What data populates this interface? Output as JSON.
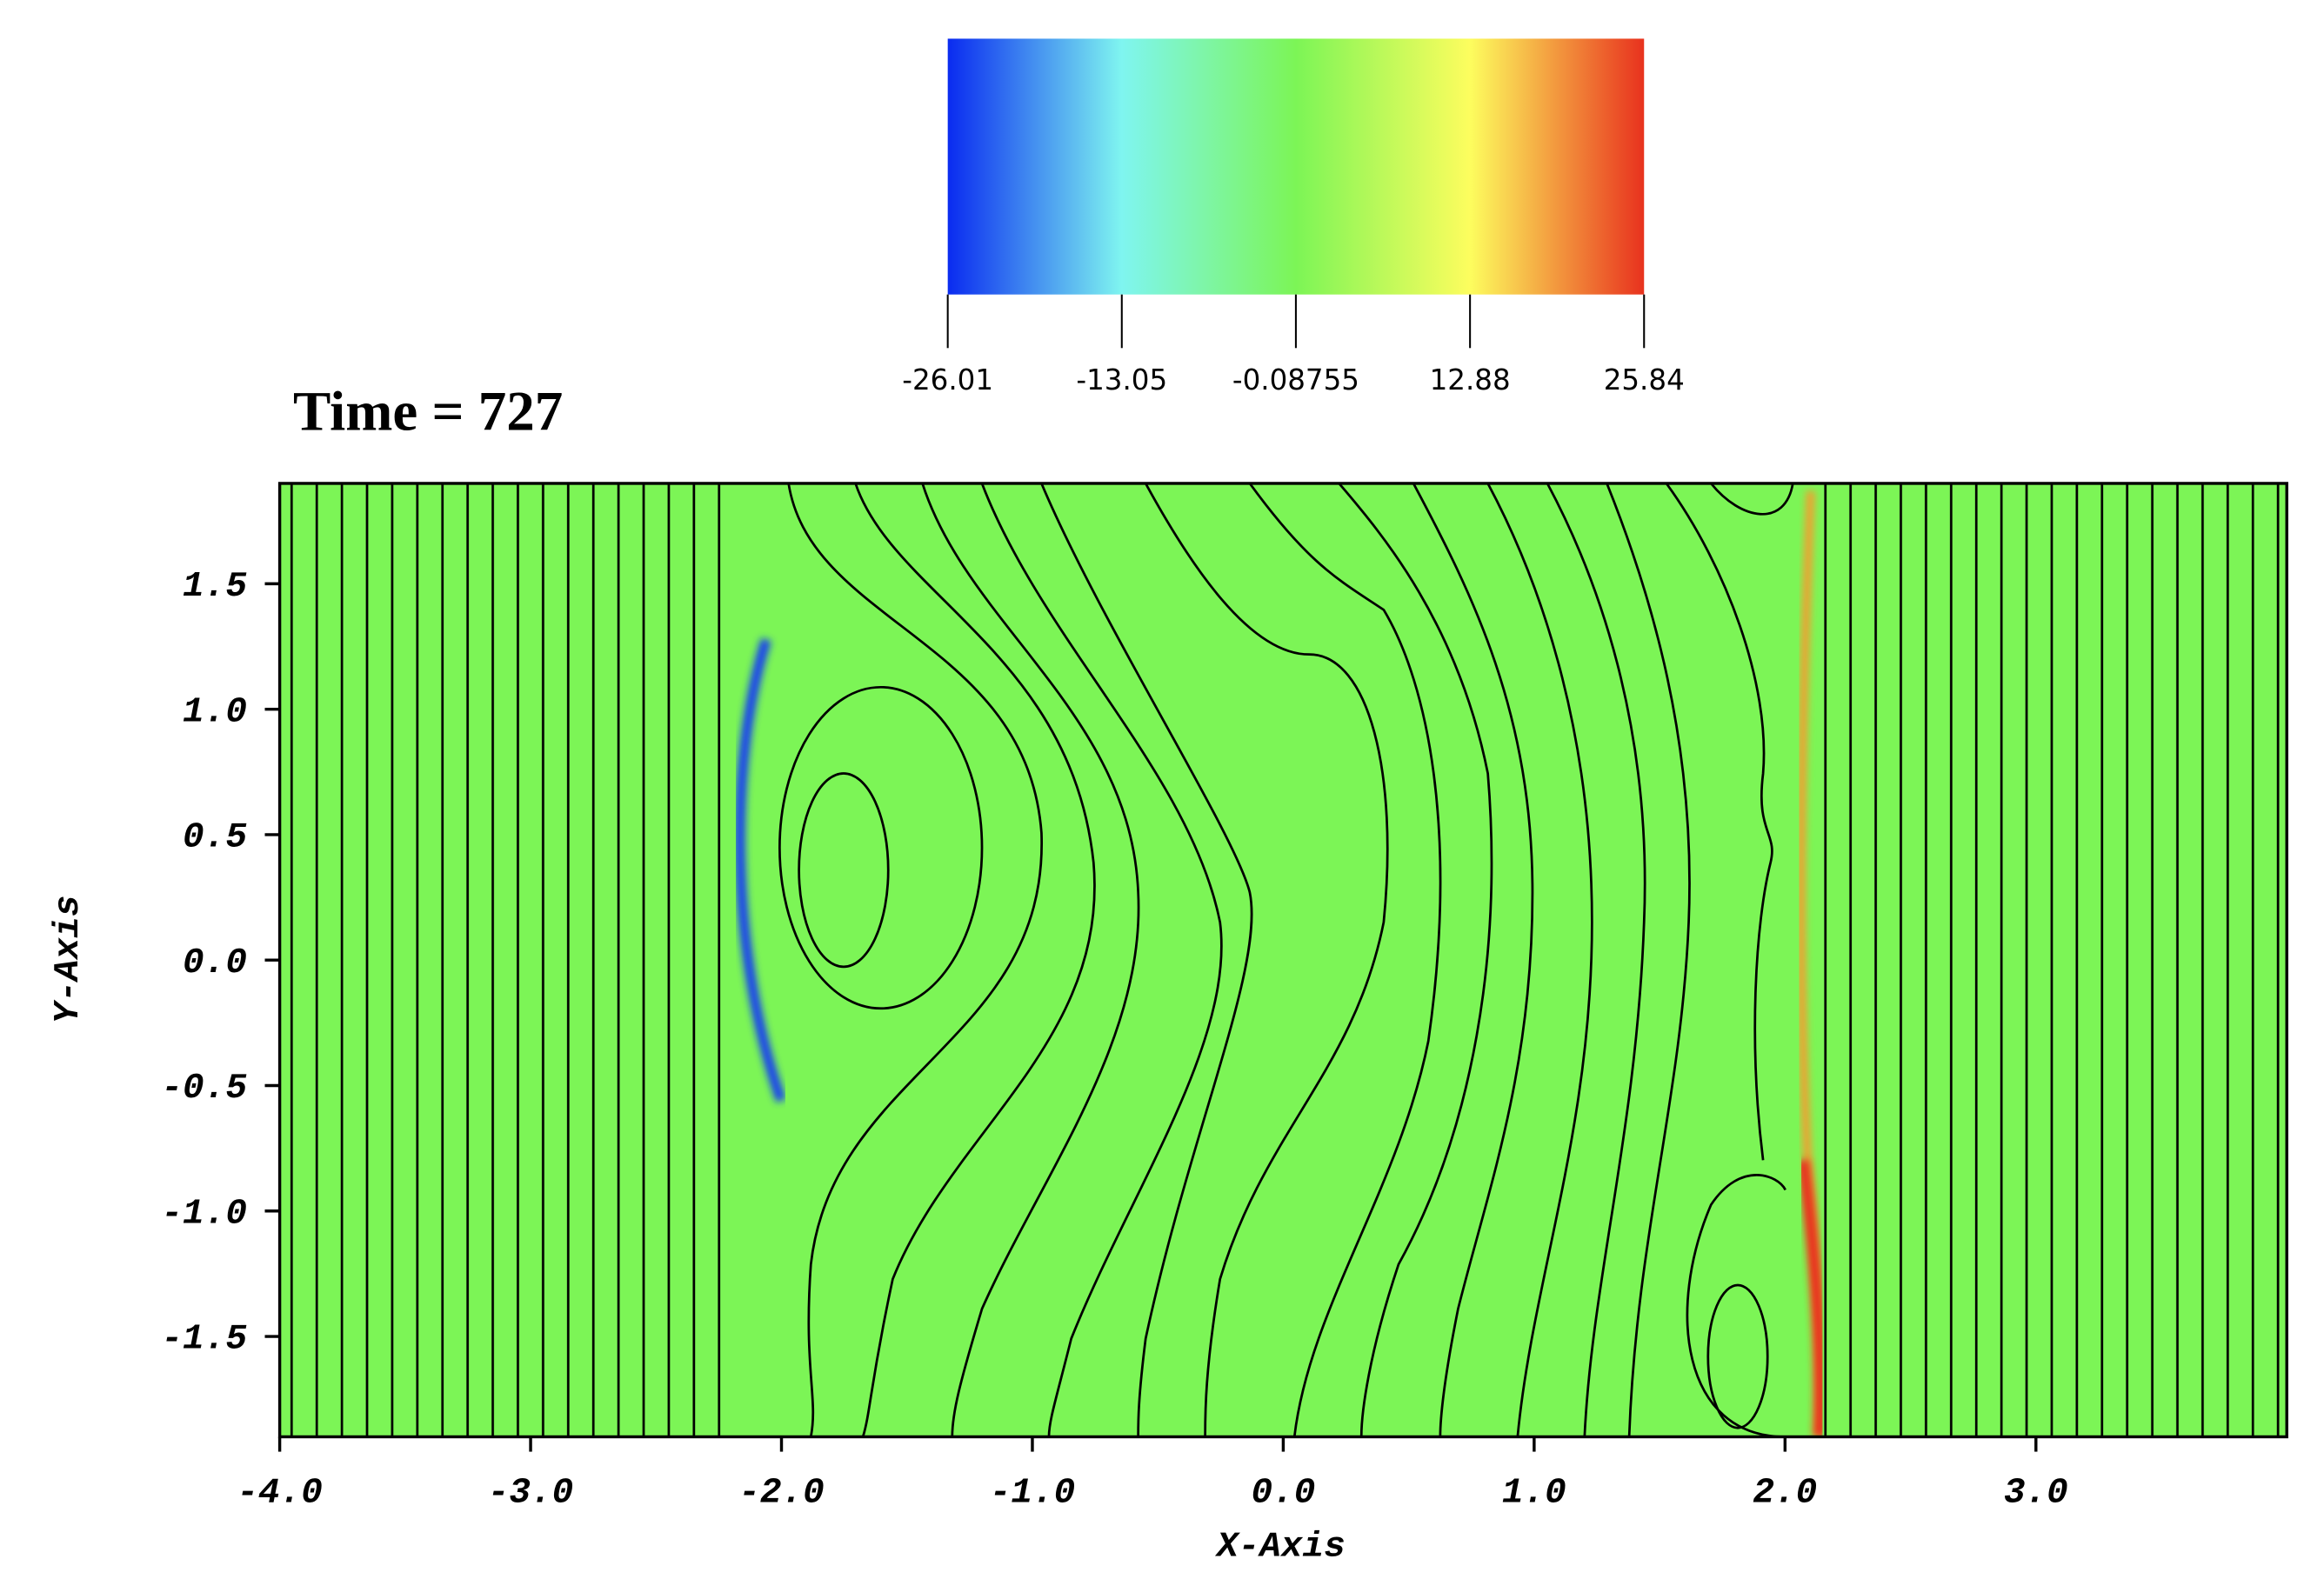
{
  "chart_data": {
    "type": "contour",
    "title": "Time = 727",
    "x_label": "X-Axis",
    "y_label": "Y-Axis",
    "xlim": [
      -4.0,
      4.0
    ],
    "ylim": [
      -1.9,
      1.9
    ],
    "xticks": [
      {
        "value": -4,
        "label": "-4.0"
      },
      {
        "value": -3,
        "label": "-3.0"
      },
      {
        "value": -2,
        "label": "-2.0"
      },
      {
        "value": -1,
        "label": "-1.0"
      },
      {
        "value": 0,
        "label": "0.0"
      },
      {
        "value": 1,
        "label": "1.0"
      },
      {
        "value": 2,
        "label": "2.0"
      },
      {
        "value": 3,
        "label": "3.0"
      }
    ],
    "yticks": [
      {
        "value": -1.5,
        "label": "-1.5"
      },
      {
        "value": -1,
        "label": "-1.0"
      },
      {
        "value": -0.5,
        "label": "-0.5"
      },
      {
        "value": 0,
        "label": "0.0"
      },
      {
        "value": 0.5,
        "label": "0.5"
      },
      {
        "value": 1,
        "label": "1.0"
      },
      {
        "value": 1.5,
        "label": "1.5"
      }
    ],
    "field_color": "#7cf556",
    "colorbar": {
      "clim": [
        -26.01,
        25.84
      ],
      "ticks": [
        -26.01,
        -13.05,
        -0.08755,
        12.88,
        25.84
      ],
      "colors": [
        "#0a2bf0",
        "#7ff5f0",
        "#7cf556",
        "#fdfd5e",
        "#e8321e"
      ]
    }
  }
}
